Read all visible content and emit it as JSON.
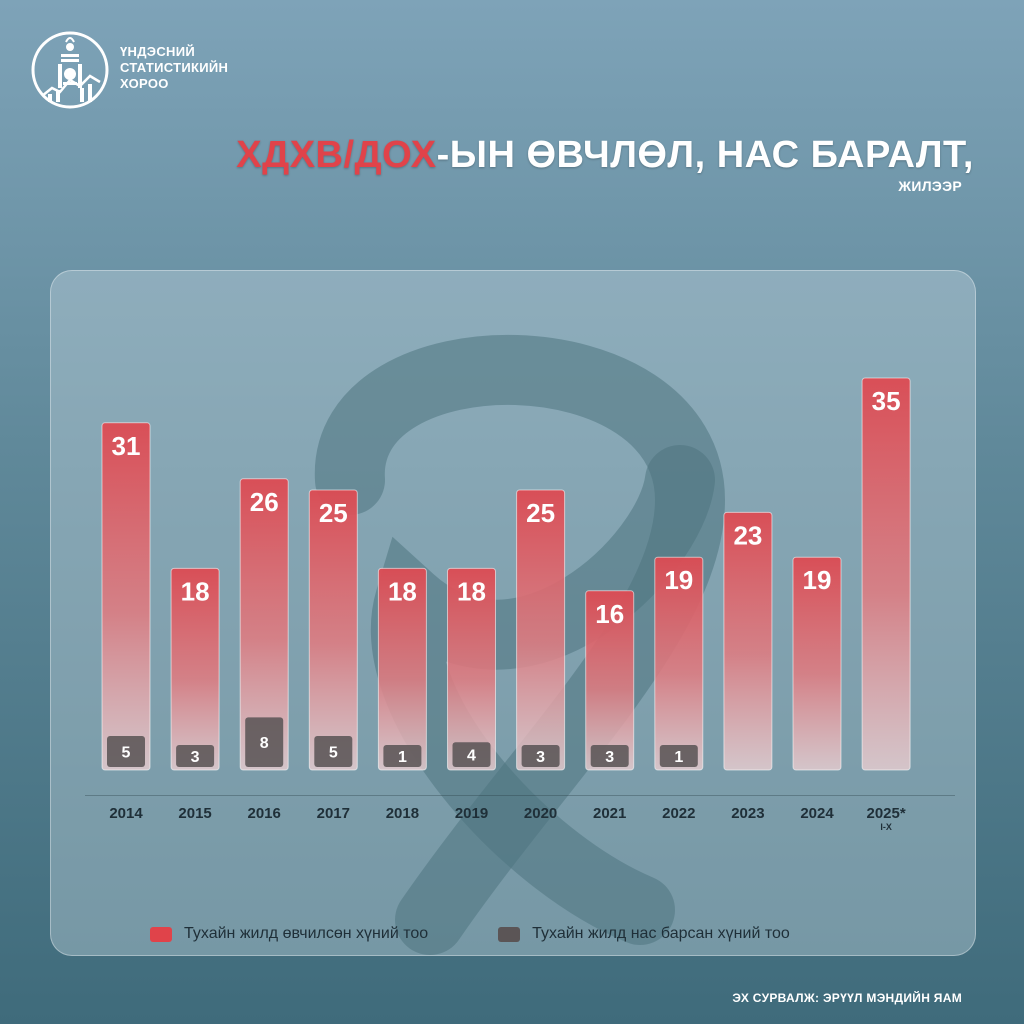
{
  "org_name": "ҮНДЭСНИЙ СТАТИСТИКИЙН ХОРОО",
  "title_accent": "ХДХВ/ДОХ",
  "title_rest": "-ЫН ӨВЧЛӨЛ, НАС БАРАЛТ,",
  "subtitle": "ЖИЛЭЭР",
  "source": "ЭХ СУРВАЛЖ: ЭРҮҮЛ МЭНДИЙН ЯАМ",
  "colors": {
    "cases": "#e0434a",
    "deaths": "#5b5556",
    "accent": "#e0434a"
  },
  "icons": {
    "logo": "soyombo-emblem-icon",
    "background": "awareness-ribbon-icon"
  },
  "chart_data": {
    "type": "bar",
    "categories": [
      "2014",
      "2015",
      "2016",
      "2017",
      "2018",
      "2019",
      "2020",
      "2021",
      "2022",
      "2023",
      "2024",
      "2025*"
    ],
    "category_notes": {
      "2025*": "I-X"
    },
    "series": [
      {
        "name": "Тухайн жилд өвчилсөн хүний тоо",
        "values": [
          31,
          18,
          26,
          25,
          18,
          18,
          25,
          16,
          19,
          23,
          19,
          35
        ]
      },
      {
        "name": "Тухайн жилд нас барсан хүний тоо",
        "values": [
          5,
          3,
          8,
          5,
          1,
          4,
          3,
          3,
          1,
          null,
          null,
          null
        ]
      }
    ],
    "legend": "bottom",
    "grid": false
  }
}
